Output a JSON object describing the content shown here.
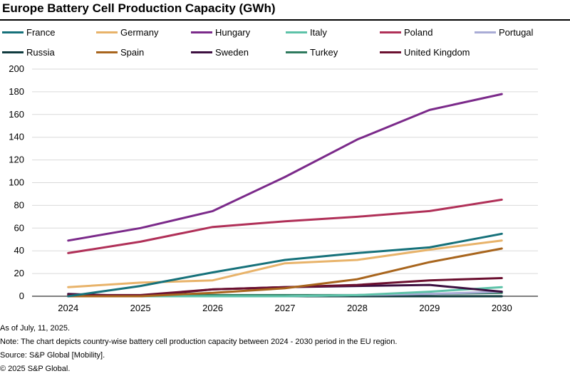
{
  "title": "Europe Battery Cell Production Capacity (GWh)",
  "chart_data": {
    "type": "line",
    "title": "Europe Battery Cell Production Capacity (GWh)",
    "xlabel": "",
    "ylabel": "",
    "x": [
      "2024",
      "2025",
      "2026",
      "2027",
      "2028",
      "2029",
      "2030"
    ],
    "ylim": [
      0,
      200
    ],
    "yticks": [
      "0",
      "20",
      "40",
      "60",
      "80",
      "100",
      "120",
      "140",
      "160",
      "180",
      "200"
    ],
    "grid": "horizontal",
    "legend_position": "top",
    "series": [
      {
        "name": "France",
        "color": "#16717a",
        "values": [
          0,
          9,
          21,
          32,
          38,
          43,
          55
        ]
      },
      {
        "name": "Germany",
        "color": "#e8b36a",
        "values": [
          8,
          12,
          14,
          29,
          32,
          41,
          49
        ]
      },
      {
        "name": "Hungary",
        "color": "#7b2a8a",
        "values": [
          49,
          60,
          75,
          105,
          138,
          164,
          178
        ]
      },
      {
        "name": "Italy",
        "color": "#5dc2a8",
        "values": [
          0,
          0,
          0,
          0,
          1,
          4,
          8
        ]
      },
      {
        "name": "Poland",
        "color": "#b03058",
        "values": [
          38,
          48,
          61,
          66,
          70,
          75,
          85
        ]
      },
      {
        "name": "Portugal",
        "color": "#a9acd6",
        "values": [
          0,
          0,
          0,
          0,
          1,
          2,
          4
        ]
      },
      {
        "name": "Russia",
        "color": "#0f3a3e",
        "values": [
          0,
          0,
          0,
          0,
          0,
          0,
          0
        ]
      },
      {
        "name": "Spain",
        "color": "#a8651d",
        "values": [
          0,
          0,
          3,
          7,
          15,
          30,
          42
        ]
      },
      {
        "name": "Sweden",
        "color": "#3c0f40",
        "values": [
          2,
          0,
          6,
          8,
          9,
          10,
          4
        ]
      },
      {
        "name": "Turkey",
        "color": "#2e7a5e",
        "values": [
          0,
          0,
          1,
          1,
          1,
          2,
          3
        ]
      },
      {
        "name": "United Kingdom",
        "color": "#6b1030",
        "values": [
          1,
          1,
          6,
          8,
          10,
          14,
          16
        ]
      }
    ]
  },
  "footnotes": [
    "As of July, 11, 2025.",
    "Note: The chart depicts country-wise battery cell production capacity between 2024 - 2030 period in the EU region.",
    "Source: S&P Global [Mobility].",
    "© 2025 S&P Global."
  ]
}
